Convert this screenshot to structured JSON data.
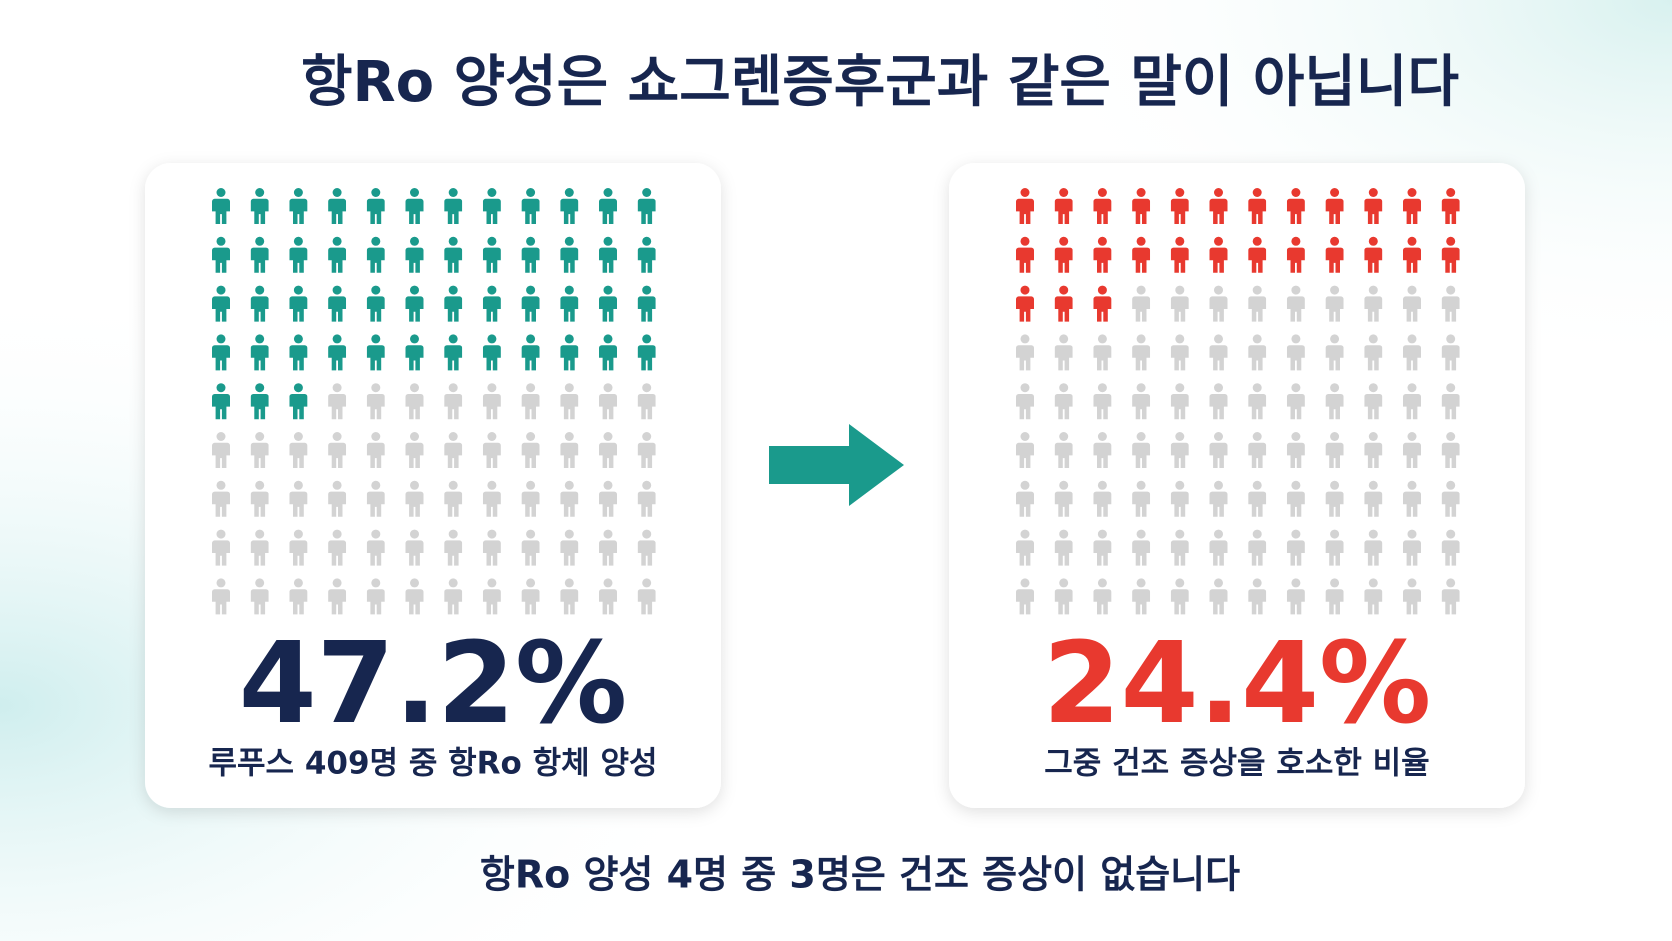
{
  "title": "항Ro 양성은 쇼그렌증후군과 같은 말이 아닙니다",
  "panels": [
    {
      "value": 47.2,
      "value_label": "47.2%",
      "caption": "루푸스 409명 중 항Ro 항체 양성",
      "color": "#1a9a8c",
      "label_color": "#17264f"
    },
    {
      "value": 24.4,
      "value_label": "24.4%",
      "caption": "그중 건조 증상을 호소한 비율",
      "color": "#e8392f",
      "label_color": "#e8392f"
    }
  ],
  "footer": "항Ro 양성 4명 중 3명은 건조 증상이 없습니다"
}
